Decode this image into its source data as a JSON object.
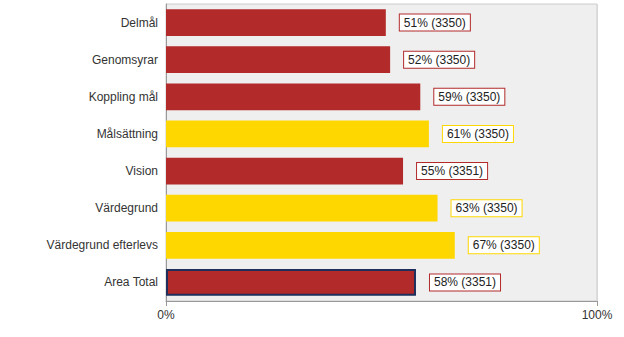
{
  "chart_data": {
    "type": "bar",
    "orientation": "horizontal",
    "categories": [
      "Delmål",
      "Genomsyrar",
      "Koppling mål",
      "Målsättning",
      "Vision",
      "Värdegrund",
      "Värdegrund efterlevs",
      "Area Total"
    ],
    "values": [
      51,
      52,
      59,
      61,
      55,
      63,
      67,
      58
    ],
    "value_labels": [
      "51% (3350)",
      "52% (3350)",
      "59% (3350)",
      "61% (3350)",
      "55% (3351)",
      "63% (3350)",
      "67% (3350)",
      "58% (3351)"
    ],
    "colors": [
      "#b22a2a",
      "#b22a2a",
      "#b22a2a",
      "#ffd700",
      "#b22a2a",
      "#ffd700",
      "#ffd700",
      "#b22a2a"
    ],
    "data_labels": true,
    "xlim": [
      0,
      100
    ],
    "xticks": [
      {
        "value": 0,
        "label": "0%"
      },
      {
        "value": 100,
        "label": "100%"
      }
    ],
    "grid": true
  }
}
